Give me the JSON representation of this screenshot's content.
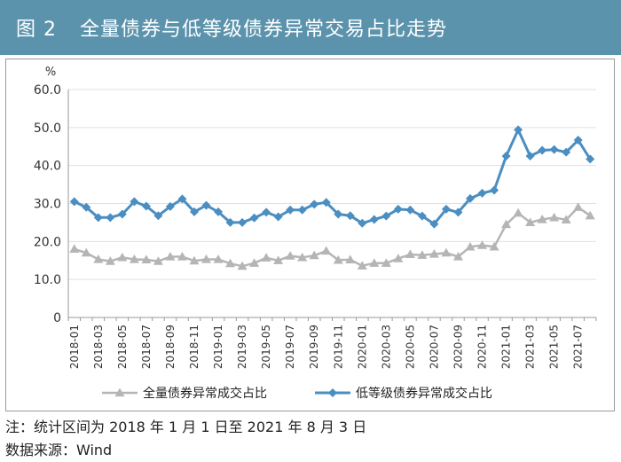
{
  "header": {
    "figure_no": "图 2",
    "title": "全量债券与低等级债券异常交易占比走势"
  },
  "footnotes": {
    "note": "注：统计区间为 2018 年 1 月 1 日至 2021 年 8 月 3 日",
    "source": "数据来源：Wind"
  },
  "colors": {
    "title_bg": "#5c93ac",
    "series_all": "#b5b5b5",
    "series_low": "#4b8ec1"
  },
  "chart_data": {
    "type": "line",
    "unit": "%",
    "ylim": [
      0,
      60
    ],
    "yticks": [
      "60.0",
      "50.0",
      "40.0",
      "30.0",
      "20.0",
      "10.0",
      "0"
    ],
    "legend_position": "bottom",
    "x": [
      "2018-01",
      "2018-02",
      "2018-03",
      "2018-04",
      "2018-05",
      "2018-06",
      "2018-07",
      "2018-08",
      "2018-09",
      "2018-10",
      "2018-11",
      "2018-12",
      "2019-01",
      "2019-02",
      "2019-03",
      "2019-04",
      "2019-05",
      "2019-06",
      "2019-07",
      "2019-08",
      "2019-09",
      "2019-10",
      "2019-11",
      "2019-12",
      "2020-01",
      "2020-02",
      "2020-03",
      "2020-04",
      "2020-05",
      "2020-06",
      "2020-07",
      "2020-08",
      "2020-09",
      "2020-10",
      "2020-11",
      "2020-12",
      "2021-01",
      "2021-02",
      "2021-03",
      "2021-04",
      "2021-05",
      "2021-06",
      "2021-07",
      "2021-08"
    ],
    "x_tick_labels": [
      "2018-01",
      "2018-03",
      "2018-05",
      "2018-07",
      "2018-09",
      "2018-11",
      "2019-01",
      "2019-03",
      "2019-05",
      "2019-07",
      "2019-09",
      "2019-11",
      "2020-01",
      "2020-03",
      "2020-05",
      "2020-07",
      "2020-09",
      "2020-11",
      "2021-01",
      "2021-03",
      "2021-05",
      "2021-07"
    ],
    "series": [
      {
        "name": "全量债券异常成交占比",
        "marker": "triangle",
        "values": [
          18.0,
          17.0,
          15.3,
          14.8,
          15.8,
          15.3,
          15.2,
          14.8,
          16.0,
          16.0,
          14.9,
          15.3,
          15.3,
          14.2,
          13.5,
          14.3,
          15.7,
          15.0,
          16.2,
          15.8,
          16.3,
          17.5,
          15.1,
          15.2,
          13.6,
          14.3,
          14.3,
          15.5,
          16.6,
          16.4,
          16.7,
          17.0,
          16.0,
          18.6,
          19.0,
          18.6,
          24.5,
          27.5,
          25.0,
          25.8,
          26.3,
          25.7,
          29.0,
          26.8
        ]
      },
      {
        "name": "低等级债券异常成交占比",
        "marker": "diamond",
        "values": [
          30.5,
          29.0,
          26.3,
          26.3,
          27.2,
          30.5,
          29.3,
          26.8,
          29.2,
          31.2,
          27.8,
          29.5,
          27.8,
          25.0,
          25.0,
          26.2,
          27.7,
          26.5,
          28.3,
          28.3,
          29.8,
          30.3,
          27.2,
          26.8,
          24.8,
          25.8,
          26.7,
          28.5,
          28.3,
          26.7,
          24.6,
          28.5,
          27.7,
          31.3,
          32.7,
          33.5,
          42.5,
          49.4,
          42.5,
          44.0,
          44.2,
          43.5,
          46.7,
          41.7
        ]
      }
    ]
  }
}
